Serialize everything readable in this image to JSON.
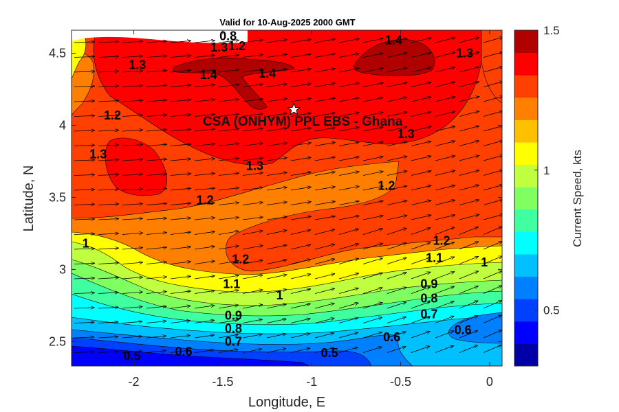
{
  "title": "Valid for 10-Aug-2025 2000 GMT",
  "site_label": "CSA (ONHYM) PPL EBS  - Ghana",
  "site_marker": {
    "lon": -1.1,
    "lat": 4.11
  },
  "axes": {
    "xlabel": "Longitude, E",
    "ylabel": "Latitude, N",
    "xlim": [
      -2.35,
      0.07
    ],
    "ylim": [
      2.33,
      4.66
    ],
    "xticks": [
      {
        "value": -2,
        "label": "-2"
      },
      {
        "value": -1.5,
        "label": "-1.5"
      },
      {
        "value": -1,
        "label": "-1"
      },
      {
        "value": -0.5,
        "label": "-0.5"
      },
      {
        "value": 0,
        "label": "0"
      }
    ],
    "yticks": [
      {
        "value": 2.5,
        "label": "2.5"
      },
      {
        "value": 3,
        "label": "3"
      },
      {
        "value": 3.5,
        "label": "3.5"
      },
      {
        "value": 4,
        "label": "4"
      },
      {
        "value": 4.5,
        "label": "4.5"
      }
    ]
  },
  "colorbar": {
    "label": "Current Speed, kts",
    "min": 0.3,
    "max": 1.5,
    "ticks": [
      {
        "value": 0.5,
        "label": "0.5"
      },
      {
        "value": 1,
        "label": "1"
      },
      {
        "value": 1.5,
        "label": "1.5"
      }
    ],
    "colors": [
      "#0000a6",
      "#0000ff",
      "#0040ff",
      "#0080ff",
      "#00c0ff",
      "#00ffff",
      "#40ffa0",
      "#80ff60",
      "#c0ff40",
      "#ffff00",
      "#ffc000",
      "#ff8000",
      "#ff4000",
      "#ff0000",
      "#b00000"
    ]
  },
  "contour_labels": [
    {
      "text": "0.8",
      "lon": -1.47,
      "lat": 4.62
    },
    {
      "text": "1.3",
      "lon": -1.52,
      "lat": 4.54
    },
    {
      "text": "1.2",
      "lon": -1.42,
      "lat": 4.55
    },
    {
      "text": "1.3",
      "lon": -1.98,
      "lat": 4.42
    },
    {
      "text": "1.4",
      "lon": -1.58,
      "lat": 4.35
    },
    {
      "text": "1.4",
      "lon": -1.25,
      "lat": 4.36
    },
    {
      "text": "1.4",
      "lon": -0.54,
      "lat": 4.59
    },
    {
      "text": "1.3",
      "lon": -0.14,
      "lat": 4.5
    },
    {
      "text": "1.2",
      "lon": -2.12,
      "lat": 4.07
    },
    {
      "text": "1.3",
      "lon": -2.2,
      "lat": 3.8
    },
    {
      "text": "1.3",
      "lon": -0.47,
      "lat": 3.94
    },
    {
      "text": "1.3",
      "lon": -1.32,
      "lat": 3.72
    },
    {
      "text": "1.2",
      "lon": -0.58,
      "lat": 3.58
    },
    {
      "text": "1.2",
      "lon": -1.6,
      "lat": 3.48
    },
    {
      "text": "1",
      "lon": -2.27,
      "lat": 3.18
    },
    {
      "text": "1.2",
      "lon": -0.27,
      "lat": 3.2
    },
    {
      "text": "1.1",
      "lon": -0.31,
      "lat": 3.08
    },
    {
      "text": "1",
      "lon": -0.03,
      "lat": 3.05
    },
    {
      "text": "1.2",
      "lon": -1.4,
      "lat": 3.07
    },
    {
      "text": "1.1",
      "lon": -1.45,
      "lat": 2.9
    },
    {
      "text": "1",
      "lon": -1.18,
      "lat": 2.82
    },
    {
      "text": "0.9",
      "lon": -0.34,
      "lat": 2.9
    },
    {
      "text": "0.8",
      "lon": -0.34,
      "lat": 2.8
    },
    {
      "text": "0.7",
      "lon": -0.34,
      "lat": 2.69
    },
    {
      "text": "0.9",
      "lon": -1.44,
      "lat": 2.68
    },
    {
      "text": "0.8",
      "lon": -1.44,
      "lat": 2.59
    },
    {
      "text": "0.7",
      "lon": -1.44,
      "lat": 2.5
    },
    {
      "text": "0.6",
      "lon": -0.55,
      "lat": 2.53
    },
    {
      "text": "0.6",
      "lon": -0.15,
      "lat": 2.58
    },
    {
      "text": "0.6",
      "lon": -1.72,
      "lat": 2.43
    },
    {
      "text": "0.5",
      "lon": -2.01,
      "lat": 2.4
    },
    {
      "text": "0.5",
      "lon": -0.9,
      "lat": 2.42
    }
  ]
}
